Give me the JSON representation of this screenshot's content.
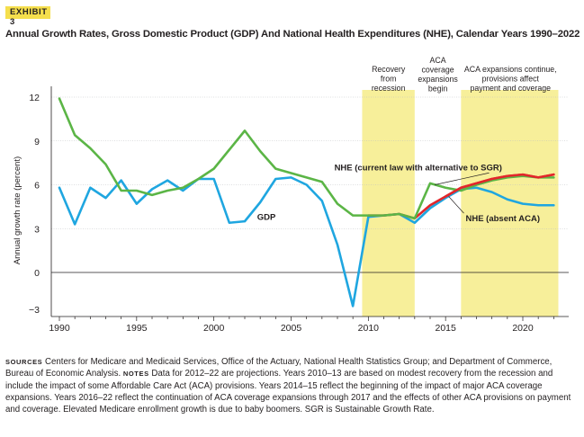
{
  "exhibit_label": "EXHIBIT 3",
  "chart_data": {
    "type": "line",
    "title": "Annual Growth Rates, Gross Domestic Product (GDP) And National Health Expenditures (NHE), Calendar Years 1990–2022",
    "xlabel": "",
    "ylabel": "Annual growth rate (percent)",
    "xlim": [
      1989.6,
      2023.5
    ],
    "ylim": [
      -3.0,
      12.9
    ],
    "xticks": [
      1990,
      1995,
      2000,
      2005,
      2010,
      2015,
      2020
    ],
    "yticks": [
      12,
      9,
      6,
      3,
      0,
      -3
    ],
    "ytick_labels": [
      "12",
      "9",
      "6",
      "3",
      "0",
      "−3"
    ],
    "grid": "horizontal",
    "x": [
      1990,
      1991,
      1992,
      1993,
      1994,
      1995,
      1996,
      1997,
      1998,
      1999,
      2000,
      2001,
      2002,
      2003,
      2004,
      2005,
      2006,
      2007,
      2008,
      2009,
      2010,
      2011,
      2012,
      2013,
      2014,
      2015,
      2016,
      2017,
      2018,
      2019,
      2020,
      2021,
      2022
    ],
    "series": [
      {
        "name": "GDP",
        "color": "#1fa6e0",
        "x_start": 1990,
        "values": [
          5.8,
          3.3,
          5.8,
          5.1,
          6.3,
          4.7,
          5.7,
          6.3,
          5.6,
          6.4,
          6.4,
          3.4,
          3.5,
          4.8,
          6.4,
          6.5,
          6.0,
          4.9,
          1.9,
          -2.3,
          3.8,
          3.9,
          4.0,
          3.4,
          4.4,
          5.1,
          5.7,
          5.8,
          5.5,
          5.0,
          4.7,
          4.6,
          4.6
        ]
      },
      {
        "name": "NHE (absent ACA)",
        "color": "#e2262b",
        "x_start": 2010,
        "values": [
          3.9,
          3.9,
          4.0,
          3.7,
          4.6,
          5.2,
          5.8,
          6.1,
          6.4,
          6.6,
          6.7,
          6.5,
          6.7
        ]
      },
      {
        "name": "NHE (current law with alternative to SGR)",
        "color": "#5bb546",
        "x_start": 1990,
        "values": [
          11.9,
          9.4,
          8.5,
          7.4,
          5.6,
          5.6,
          5.3,
          5.6,
          5.8,
          6.4,
          7.1,
          8.4,
          9.7,
          8.3,
          7.1,
          6.8,
          6.5,
          6.2,
          4.7,
          3.9,
          3.9,
          3.9,
          4.0,
          3.7,
          6.1,
          5.8,
          5.6,
          6.0,
          6.3,
          6.5,
          6.6,
          6.5,
          6.5
        ]
      }
    ],
    "shaded_regions": [
      {
        "x_from": 2009.6,
        "x_to": 2013.0,
        "color": "#f7ef9a"
      },
      {
        "x_from": 2016.0,
        "x_to": 2022.3,
        "color": "#f7ef9a"
      }
    ],
    "annotations": [
      {
        "lines": [
          "Recovery",
          "from",
          "recession"
        ],
        "x": 2011.3
      },
      {
        "lines": [
          "ACA",
          "coverage",
          "expansions",
          "begin"
        ],
        "x": 2014.5
      },
      {
        "lines": [
          "ACA expansions continue,",
          "provisions affect",
          "payment and coverage"
        ],
        "x": 2019.2
      }
    ],
    "series_labels": [
      {
        "text": "GDP",
        "series": "GDP",
        "x": 2002.8,
        "y": 3.6
      },
      {
        "text": "NHE (current law with alternative to SGR)",
        "series": "NHE (current law with alternative to SGR)",
        "x": 2007.8,
        "y": 7.0,
        "leader_to": [
          2014.3,
          6.0
        ]
      },
      {
        "text": "NHE (absent ACA)",
        "series": "NHE (absent ACA)",
        "x": 2016.3,
        "y": 3.5,
        "leader_to": [
          2015.2,
          5.2
        ]
      }
    ]
  },
  "notes": {
    "sources_label": "Sources",
    "sources_text": " Centers for Medicare and Medicaid Services, Office of the Actuary, National Health Statistics Group; and Department of Commerce, Bureau of Economic Analysis. ",
    "notes_label": "Notes",
    "notes_text": " Data for 2012–22 are projections. Years 2010–13 are based on modest recovery from the recession and include the impact of some Affordable Care Act (ACA) provisions. Years 2014–15 reflect the beginning of the impact of major ACA coverage expansions. Years 2016–22 reflect the continuation of ACA coverage expansions through 2017 and the effects of other ACA provisions on payment and coverage. Elevated Medicare enrollment growth is due to baby boomers. SGR is Sustainable Growth Rate."
  }
}
